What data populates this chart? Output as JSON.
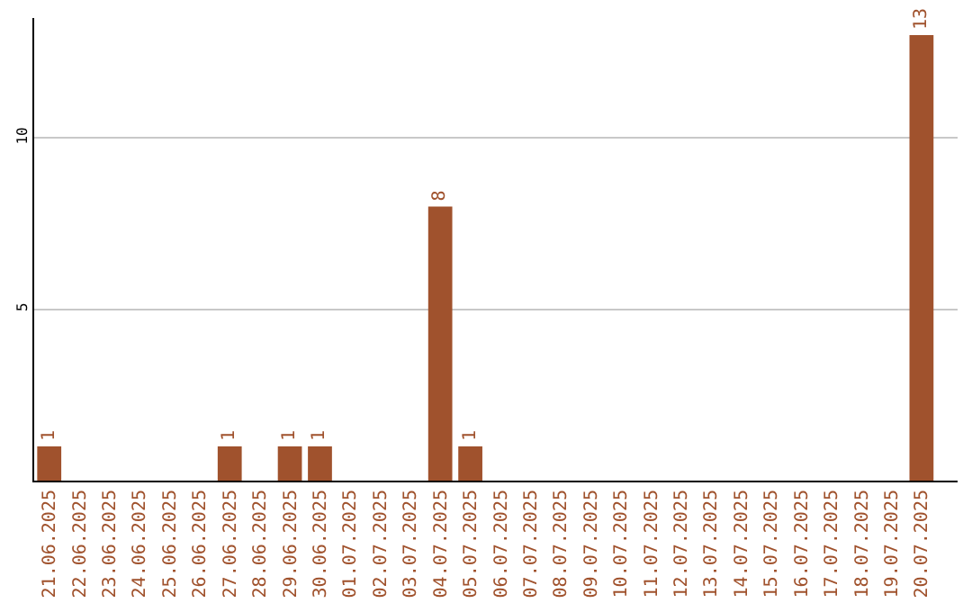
{
  "chart_data": {
    "type": "bar",
    "categories": [
      "21.06.2025",
      "22.06.2025",
      "23.06.2025",
      "24.06.2025",
      "25.06.2025",
      "26.06.2025",
      "27.06.2025",
      "28.06.2025",
      "29.06.2025",
      "30.06.2025",
      "01.07.2025",
      "02.07.2025",
      "03.07.2025",
      "04.07.2025",
      "05.07.2025",
      "06.07.2025",
      "07.07.2025",
      "08.07.2025",
      "09.07.2025",
      "10.07.2025",
      "11.07.2025",
      "12.07.2025",
      "13.07.2025",
      "14.07.2025",
      "15.07.2025",
      "16.07.2025",
      "17.07.2025",
      "18.07.2025",
      "19.07.2025",
      "20.07.2025"
    ],
    "values": [
      1,
      0,
      0,
      0,
      0,
      0,
      1,
      0,
      1,
      1,
      0,
      0,
      0,
      8,
      1,
      0,
      0,
      0,
      0,
      0,
      0,
      0,
      0,
      0,
      0,
      0,
      0,
      0,
      0,
      13
    ],
    "value_labels": [
      "1",
      null,
      null,
      null,
      null,
      null,
      "1",
      null,
      "1",
      "1",
      null,
      null,
      null,
      "8",
      "1",
      null,
      null,
      null,
      null,
      null,
      null,
      null,
      null,
      null,
      null,
      null,
      null,
      null,
      null,
      "13"
    ],
    "color": "#a0522d",
    "ylim": [
      0,
      13.5
    ],
    "yticks": [
      5,
      10
    ],
    "grid": "y",
    "legend": false
  }
}
